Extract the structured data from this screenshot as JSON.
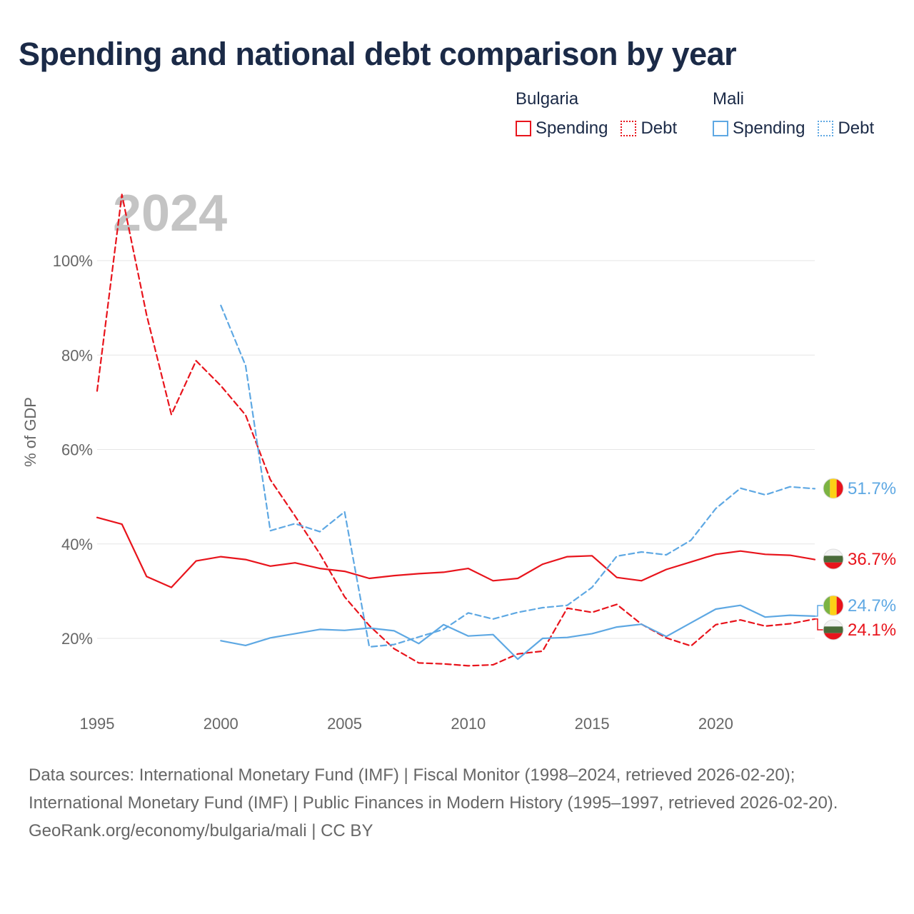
{
  "title": "Spending and national debt comparison by year",
  "legend": {
    "groups": [
      {
        "name": "Bulgaria",
        "color": "#e8141c",
        "items": [
          {
            "label": "Spending",
            "style": "solid"
          },
          {
            "label": "Debt",
            "style": "dotted"
          }
        ]
      },
      {
        "name": "Mali",
        "color": "#5ea8e3",
        "items": [
          {
            "label": "Spending",
            "style": "solid"
          },
          {
            "label": "Debt",
            "style": "dotted"
          }
        ]
      }
    ]
  },
  "year_label": "2024",
  "source": {
    "line1": "Data sources: International Monetary Fund (IMF) | Fiscal Monitor (1998–2024, retrieved 2026-02-20); International Monetary Fund (IMF) | Public Finances in Modern History (1995–1997, retrieved 2026-02-20).",
    "line2": "GeoRank.org/economy/bulgaria/mali | CC BY"
  },
  "chart_data": {
    "type": "line",
    "title": "Spending and national debt comparison by year",
    "xlabel": "",
    "ylabel": "% of GDP",
    "xlim": [
      1995,
      2024
    ],
    "ylim": [
      5,
      115
    ],
    "x_ticks": [
      1995,
      2000,
      2005,
      2010,
      2015,
      2020
    ],
    "y_ticks": [
      20,
      40,
      60,
      80,
      100
    ],
    "y_tick_labels": [
      "20%",
      "40%",
      "60%",
      "80%",
      "100%"
    ],
    "grid": true,
    "series": [
      {
        "name": "Bulgaria Spending",
        "country": "Bulgaria",
        "measure": "Spending",
        "color": "#e8141c",
        "dash": "solid",
        "x": [
          1995,
          1996,
          1997,
          1998,
          1999,
          2000,
          2001,
          2002,
          2003,
          2004,
          2005,
          2006,
          2007,
          2008,
          2009,
          2010,
          2011,
          2012,
          2013,
          2014,
          2015,
          2016,
          2017,
          2018,
          2019,
          2020,
          2021,
          2022,
          2023,
          2024
        ],
        "values": [
          45.6,
          44.2,
          33.1,
          30.8,
          36.4,
          37.3,
          36.7,
          35.3,
          36.0,
          34.8,
          34.2,
          32.7,
          33.3,
          33.7,
          34.0,
          34.8,
          32.2,
          32.7,
          35.7,
          37.3,
          37.5,
          32.9,
          32.2,
          34.6,
          36.2,
          37.8,
          38.5,
          37.8,
          37.6,
          36.7
        ],
        "end_label": "36.7%"
      },
      {
        "name": "Bulgaria Debt",
        "country": "Bulgaria",
        "measure": "Debt",
        "color": "#e8141c",
        "dash": "dashed",
        "x": [
          1995,
          1996,
          1997,
          1998,
          1999,
          2000,
          2001,
          2002,
          2003,
          2004,
          2005,
          2006,
          2007,
          2008,
          2009,
          2010,
          2011,
          2012,
          2013,
          2014,
          2015,
          2016,
          2017,
          2018,
          2019,
          2020,
          2021,
          2022,
          2023,
          2024
        ],
        "values": [
          72.4,
          114.0,
          88.5,
          67.4,
          78.8,
          73.5,
          67.3,
          53.6,
          45.9,
          37.9,
          28.8,
          22.7,
          17.8,
          14.8,
          14.6,
          14.2,
          14.4,
          16.7,
          17.3,
          26.4,
          25.5,
          27.2,
          23.0,
          20.1,
          18.4,
          22.9,
          23.9,
          22.6,
          23.1,
          24.1
        ],
        "end_label": "24.1%"
      },
      {
        "name": "Mali Spending",
        "country": "Mali",
        "measure": "Spending",
        "color": "#5ea8e3",
        "dash": "solid",
        "x": [
          2000,
          2001,
          2002,
          2003,
          2004,
          2005,
          2006,
          2007,
          2008,
          2009,
          2010,
          2011,
          2012,
          2013,
          2014,
          2015,
          2016,
          2017,
          2018,
          2019,
          2020,
          2021,
          2022,
          2023,
          2024
        ],
        "values": [
          19.5,
          18.5,
          20.1,
          21.0,
          21.9,
          21.7,
          22.2,
          21.6,
          18.9,
          22.9,
          20.5,
          20.8,
          15.6,
          20.0,
          20.2,
          21.0,
          22.4,
          23.0,
          20.4,
          23.3,
          26.2,
          27.0,
          24.5,
          24.9,
          24.7
        ],
        "end_label": "24.7%"
      },
      {
        "name": "Mali Debt",
        "country": "Mali",
        "measure": "Debt",
        "color": "#5ea8e3",
        "dash": "dashed",
        "x": [
          2000,
          2001,
          2002,
          2003,
          2004,
          2005,
          2006,
          2007,
          2008,
          2009,
          2010,
          2011,
          2012,
          2013,
          2014,
          2015,
          2016,
          2017,
          2018,
          2019,
          2020,
          2021,
          2022,
          2023,
          2024
        ],
        "values": [
          90.5,
          77.8,
          42.8,
          44.3,
          42.6,
          46.8,
          18.2,
          18.7,
          20.3,
          21.9,
          25.4,
          24.1,
          25.5,
          26.5,
          27.0,
          30.8,
          37.4,
          38.3,
          37.7,
          40.8,
          47.5,
          51.8,
          50.4,
          52.1,
          51.7
        ],
        "end_label": "51.7%"
      }
    ],
    "end_labels": [
      {
        "text": "51.7%",
        "country": "Mali",
        "color": "#5ea8e3",
        "value": 51.7,
        "flag": "mali"
      },
      {
        "text": "36.7%",
        "country": "Bulgaria",
        "color": "#e8141c",
        "value": 36.7,
        "flag": "bulgaria"
      },
      {
        "text": "24.7%",
        "country": "Mali",
        "color": "#5ea8e3",
        "value": 24.7,
        "flag": "mali"
      },
      {
        "text": "24.1%",
        "country": "Bulgaria",
        "color": "#e8141c",
        "value": 24.1,
        "flag": "bulgaria"
      }
    ]
  }
}
